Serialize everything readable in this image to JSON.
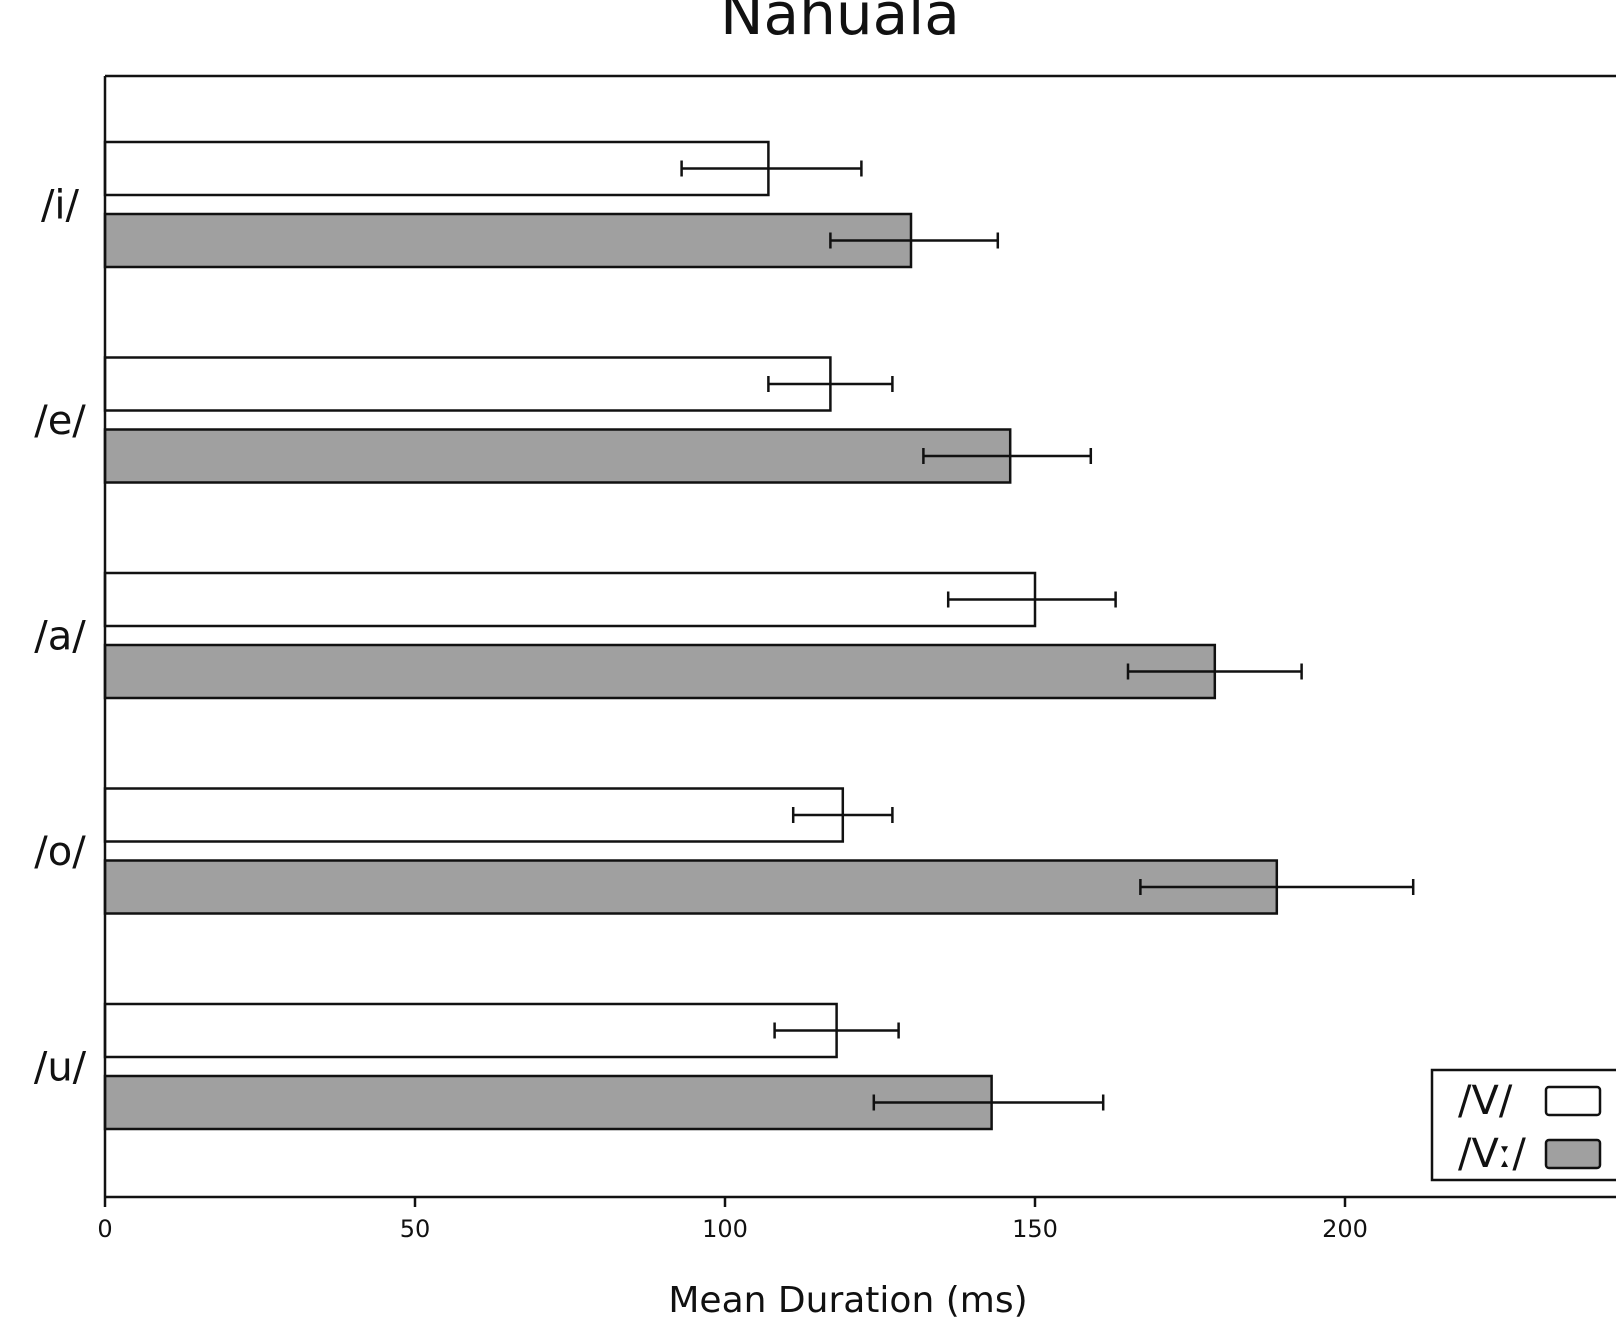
{
  "chart_data": {
    "type": "bar",
    "orientation": "horizontal",
    "title": "Nahualá",
    "xlabel": "Mean Duration (ms)",
    "ylabel": "",
    "xlim": [
      0,
      240
    ],
    "xticks": [
      0,
      50,
      100,
      150,
      200
    ],
    "categories": [
      "/i/",
      "/e/",
      "/a/",
      "/o/",
      "/u/"
    ],
    "series": [
      {
        "name": "/V/",
        "color": "#ffffff",
        "values": [
          107,
          117,
          150,
          119,
          118
        ],
        "error": [
          [
            93,
            122
          ],
          [
            107,
            127
          ],
          [
            136,
            163
          ],
          [
            111,
            127
          ],
          [
            108,
            128
          ]
        ]
      },
      {
        "name": "/Vː/",
        "color": "#a0a0a0",
        "values": [
          130,
          146,
          179,
          189,
          143
        ],
        "error": [
          [
            117,
            144
          ],
          [
            132,
            159
          ],
          [
            165,
            193
          ],
          [
            167,
            211
          ],
          [
            124,
            161
          ]
        ]
      }
    ],
    "grid": false,
    "legend": "bottom-right"
  }
}
